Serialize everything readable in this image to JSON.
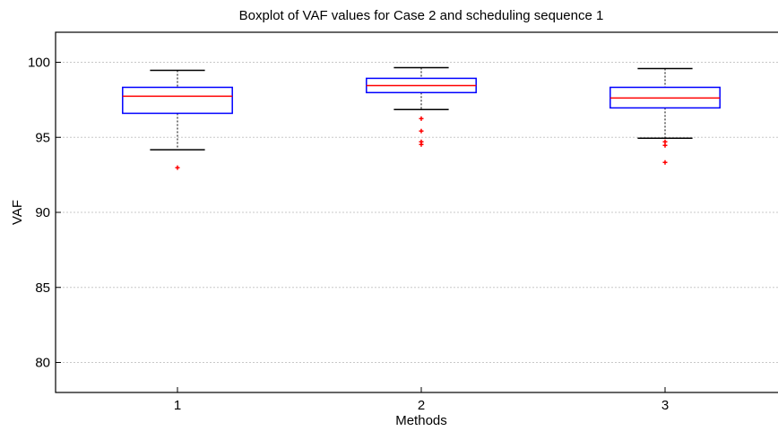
{
  "chart_data": {
    "type": "box",
    "title": "Boxplot of VAF values for Case 2 and scheduling sequence 1",
    "xlabel": "Methods",
    "ylabel": "VAF",
    "categories": [
      "1",
      "2",
      "3"
    ],
    "boxes": [
      {
        "whislo": 94.17,
        "q1": 96.6,
        "med": 97.74,
        "q3": 98.33,
        "whishi": 99.46,
        "fliers": [
          92.98
        ]
      },
      {
        "whislo": 96.85,
        "q1": 97.98,
        "med": 98.45,
        "q3": 98.93,
        "whishi": 99.64,
        "fliers": [
          96.25,
          95.42,
          94.7,
          94.52
        ]
      },
      {
        "whislo": 94.94,
        "q1": 96.96,
        "med": 97.62,
        "q3": 98.33,
        "whishi": 99.58,
        "fliers": [
          94.7,
          94.46,
          93.33
        ]
      }
    ],
    "box_color": "#0000ff",
    "median_color": "#ff0000",
    "whisker_color": "#000000",
    "flier_color": "#ff0000",
    "xlim": [
      0.5,
      3.5
    ],
    "ylim": [
      78,
      102
    ],
    "yticks": [
      80,
      85,
      90,
      95,
      100
    ],
    "grid": true
  }
}
